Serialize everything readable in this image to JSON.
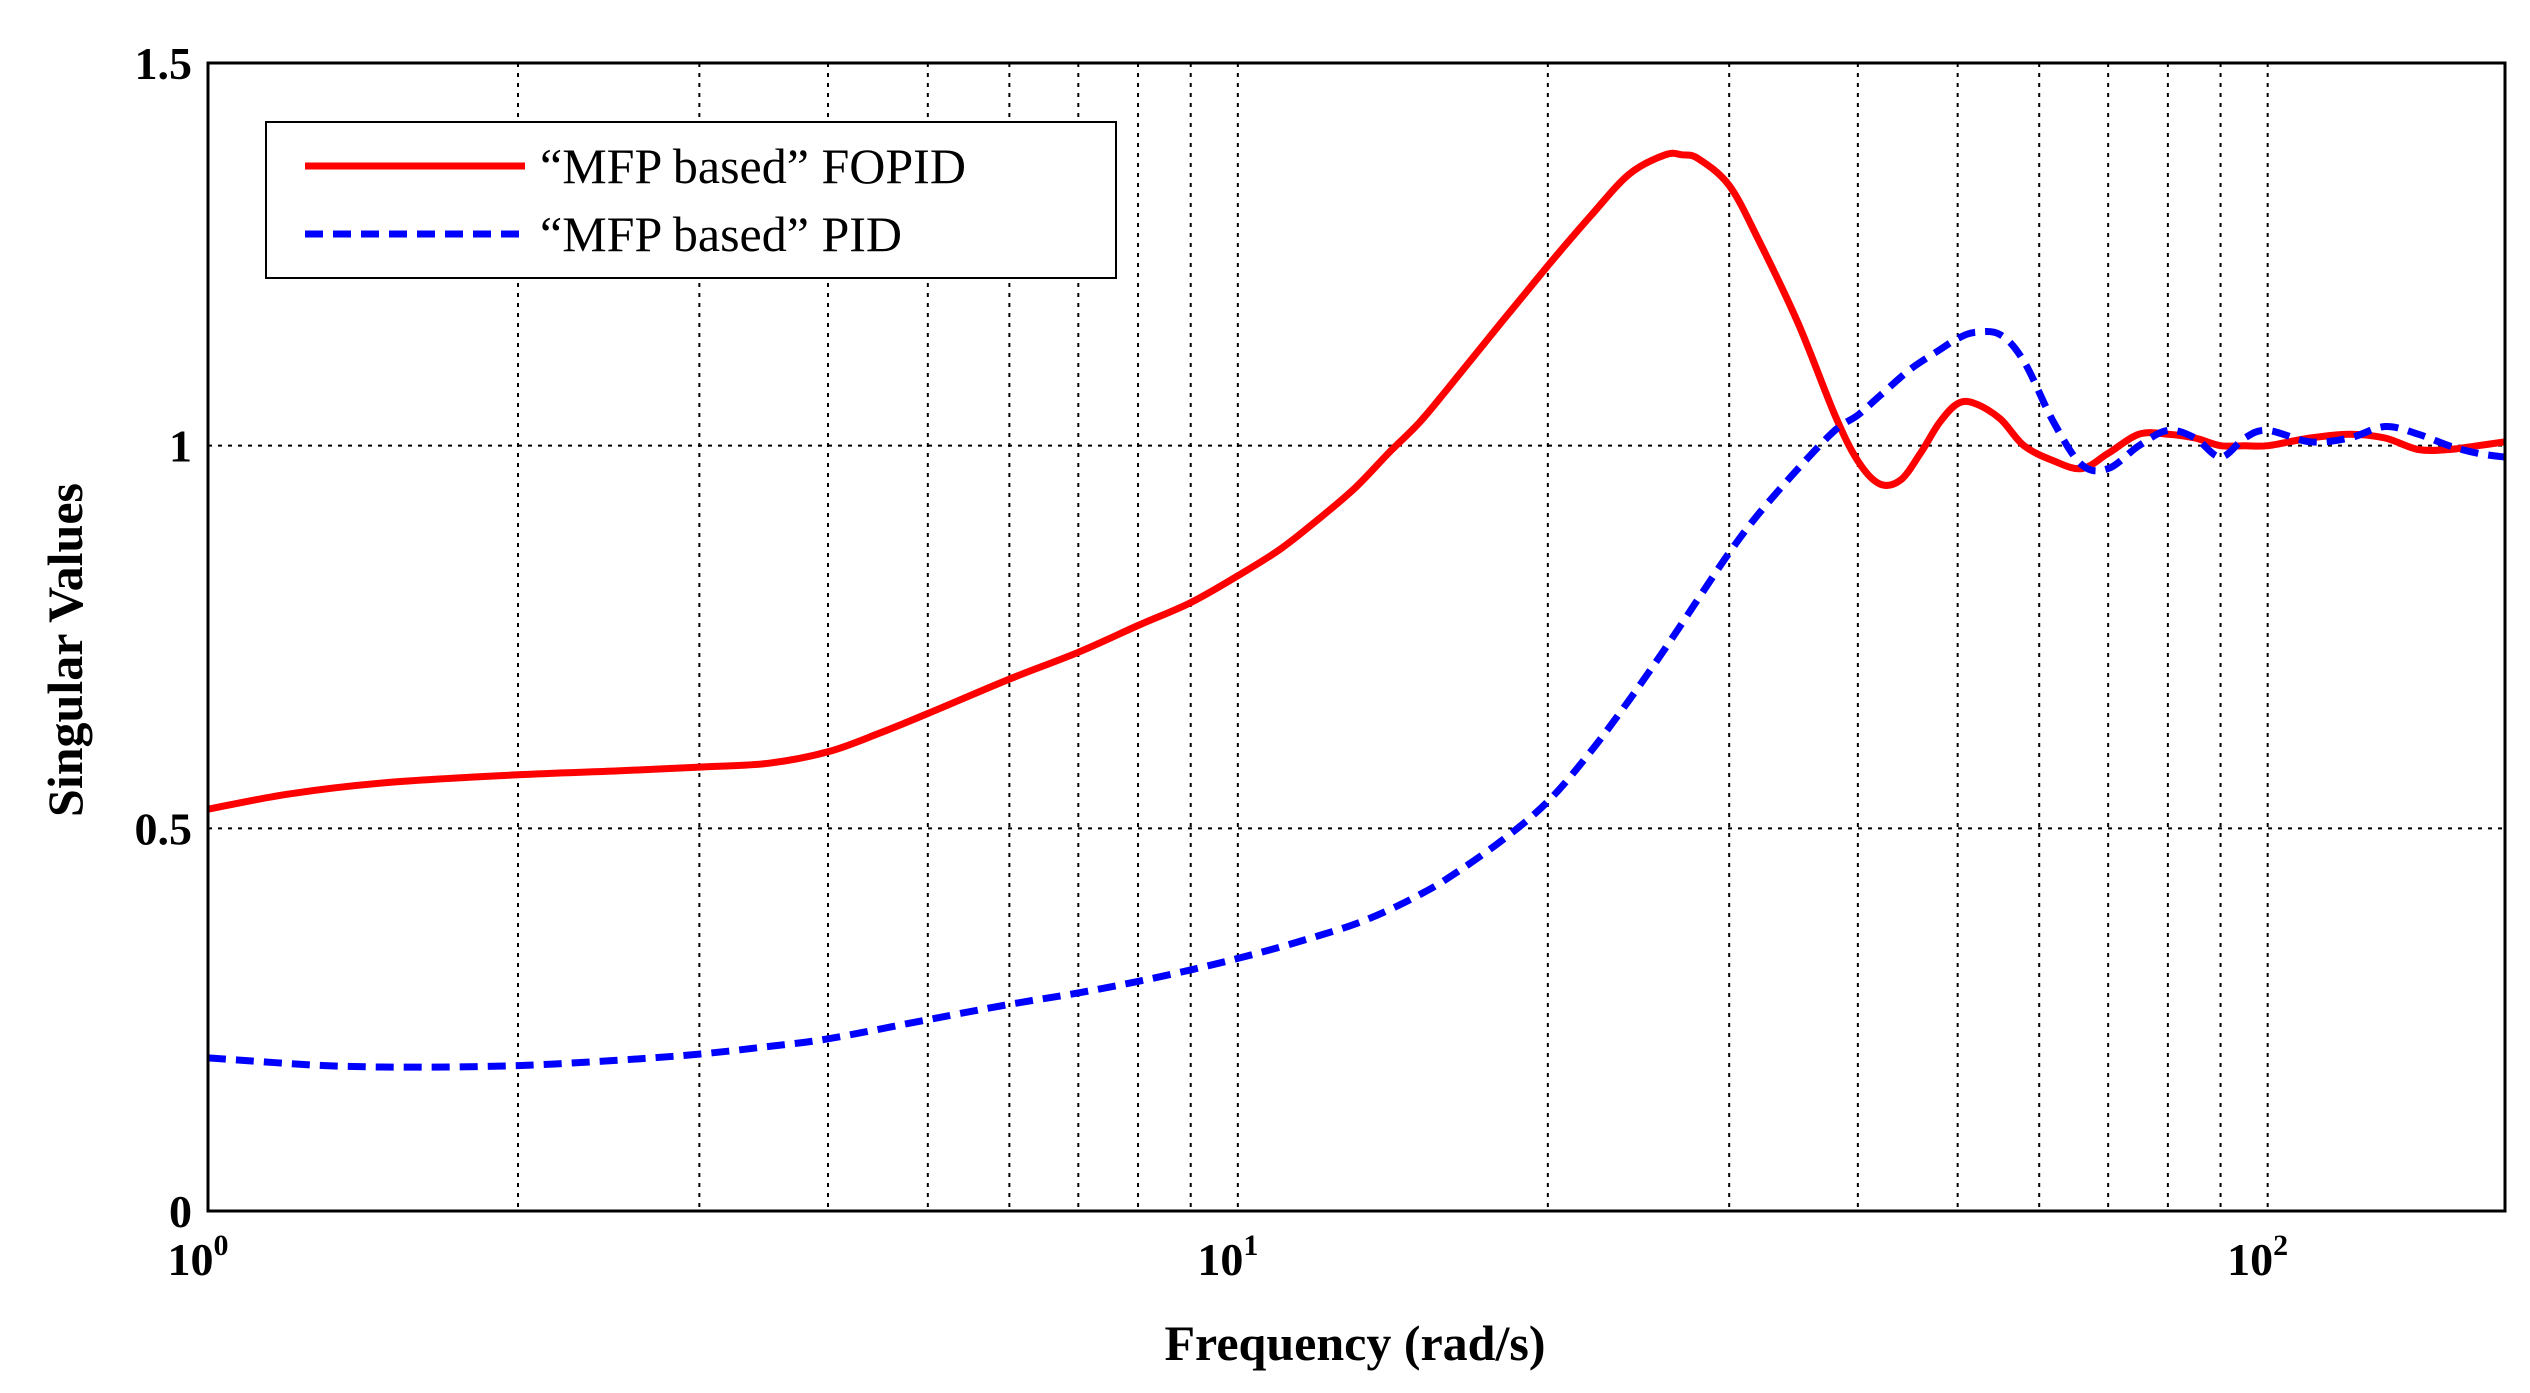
{
  "chart_data": {
    "type": "line",
    "title": "",
    "xlabel": "Frequency (rad/s)",
    "ylabel": "Singular Values",
    "xscale": "log",
    "xlim": [
      1,
      170
    ],
    "ylim": [
      0,
      1.5
    ],
    "grid": true,
    "legend_position": "top-left",
    "x_ticks": [
      {
        "base": "10",
        "exp": "0"
      },
      {
        "base": "10",
        "exp": "1"
      },
      {
        "base": "10",
        "exp": "2"
      }
    ],
    "y_ticks": [
      "0",
      "0.5",
      "1",
      "1.5"
    ],
    "series": [
      {
        "name": "“MFP based” FOPID",
        "color": "#ff0000",
        "style": "solid",
        "x": [
          1,
          1.2,
          1.5,
          2,
          2.5,
          3,
          3.5,
          4,
          4.5,
          5,
          6,
          7,
          8,
          9,
          10,
          11,
          12,
          13,
          14,
          15,
          16,
          18,
          20,
          22,
          24,
          26,
          27,
          28,
          30,
          32,
          35,
          38,
          40,
          42,
          44,
          46,
          48,
          50,
          52,
          55,
          58,
          62,
          66,
          70,
          75,
          80,
          85,
          90,
          95,
          100,
          110,
          120,
          130,
          140,
          150,
          160,
          170
        ],
        "values": [
          0.525,
          0.545,
          0.56,
          0.57,
          0.575,
          0.58,
          0.585,
          0.6,
          0.625,
          0.65,
          0.695,
          0.73,
          0.765,
          0.795,
          0.83,
          0.865,
          0.905,
          0.945,
          0.99,
          1.03,
          1.075,
          1.16,
          1.235,
          1.3,
          1.355,
          1.38,
          1.38,
          1.375,
          1.34,
          1.27,
          1.16,
          1.04,
          0.98,
          0.95,
          0.955,
          0.99,
          1.03,
          1.055,
          1.055,
          1.035,
          1.0,
          0.98,
          0.97,
          0.99,
          1.015,
          1.015,
          1.01,
          1.0,
          1.0,
          1.0,
          1.01,
          1.015,
          1.01,
          0.995,
          0.995,
          1.0,
          1.005
        ]
      },
      {
        "name": "“MFP based” PID",
        "color": "#0000ff",
        "style": "dashed",
        "x": [
          1,
          1.3,
          1.6,
          2,
          2.5,
          3,
          3.5,
          4,
          5,
          6,
          7,
          8,
          9,
          10,
          11,
          12,
          13,
          14,
          15,
          16,
          18,
          20,
          22,
          24,
          26,
          28,
          30,
          32,
          35,
          38,
          40,
          42,
          45,
          48,
          50,
          52,
          55,
          58,
          62,
          66,
          70,
          75,
          80,
          85,
          90,
          95,
          100,
          110,
          120,
          130,
          140,
          150,
          160,
          170
        ],
        "values": [
          0.2,
          0.19,
          0.188,
          0.19,
          0.197,
          0.205,
          0.215,
          0.225,
          0.25,
          0.27,
          0.285,
          0.3,
          0.315,
          0.33,
          0.345,
          0.36,
          0.375,
          0.393,
          0.413,
          0.435,
          0.483,
          0.535,
          0.6,
          0.668,
          0.735,
          0.8,
          0.86,
          0.91,
          0.97,
          1.02,
          1.04,
          1.065,
          1.1,
          1.125,
          1.14,
          1.148,
          1.145,
          1.11,
          1.03,
          0.975,
          0.97,
          1.0,
          1.02,
          1.01,
          0.985,
          1.01,
          1.02,
          1.005,
          1.01,
          1.025,
          1.015,
          1.0,
          0.99,
          0.985
        ]
      }
    ]
  }
}
